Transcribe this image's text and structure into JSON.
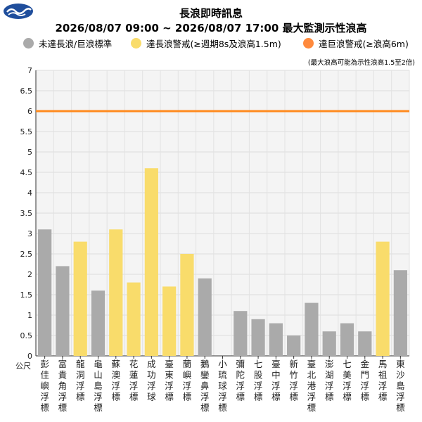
{
  "header": {
    "title": "長浪即時訊息",
    "subtitle": "2026/08/07 09:00 ~ 2026/08/07 17:00 最大監測示性浪高"
  },
  "legend": {
    "items": [
      {
        "label": "未達長浪/巨浪標準",
        "color": "#aaaaaa"
      },
      {
        "label": "達長浪警戒(≥週期8s及浪高1.5m)",
        "color": "#f9dc6b"
      },
      {
        "label": "達巨浪警戒(≥浪高6m)",
        "color": "#ff8a3d"
      }
    ]
  },
  "note": "(最大浪高可能為示性浪高1.5至2倍)",
  "chart_data": {
    "type": "bar",
    "unit_label": "公尺",
    "ylim": [
      0,
      7
    ],
    "yticks": [
      "0",
      "0.5",
      "1",
      "1.5",
      "2",
      "2.5",
      "3",
      "3.5",
      "4",
      "4.5",
      "5",
      "5.5",
      "6",
      "6.5",
      "7"
    ],
    "grid": true,
    "reference_line": {
      "value": 6,
      "color": "#ff8a1e"
    },
    "categories": [
      "彭佳嶼浮標",
      "富貴角浮標",
      "龍洞浮標",
      "龜山島浮標",
      "蘇澳浮標",
      "花蓮浮標",
      "成功浮球",
      "臺東浮標",
      "蘭嶼浮標",
      "鵝鑾鼻浮標",
      "小琉球浮標",
      "彌陀浮標",
      "七股浮標",
      "臺中浮標",
      "新竹浮標",
      "臺北港浮標",
      "澎湖浮標",
      "七美浮標",
      "金門浮標",
      "馬祖浮標",
      "東沙島浮標"
    ],
    "values": [
      3.1,
      2.2,
      2.8,
      1.6,
      3.1,
      1.8,
      4.6,
      1.7,
      2.5,
      1.9,
      null,
      1.1,
      0.9,
      0.8,
      0.5,
      1.3,
      0.6,
      0.8,
      0.6,
      2.8,
      2.1
    ],
    "colors": [
      "#aaaaaa",
      "#aaaaaa",
      "#f9dc6b",
      "#aaaaaa",
      "#f9dc6b",
      "#f9dc6b",
      "#f9dc6b",
      "#f9dc6b",
      "#f9dc6b",
      "#aaaaaa",
      "#aaaaaa",
      "#aaaaaa",
      "#aaaaaa",
      "#aaaaaa",
      "#aaaaaa",
      "#aaaaaa",
      "#aaaaaa",
      "#aaaaaa",
      "#aaaaaa",
      "#f9dc6b",
      "#aaaaaa"
    ]
  }
}
